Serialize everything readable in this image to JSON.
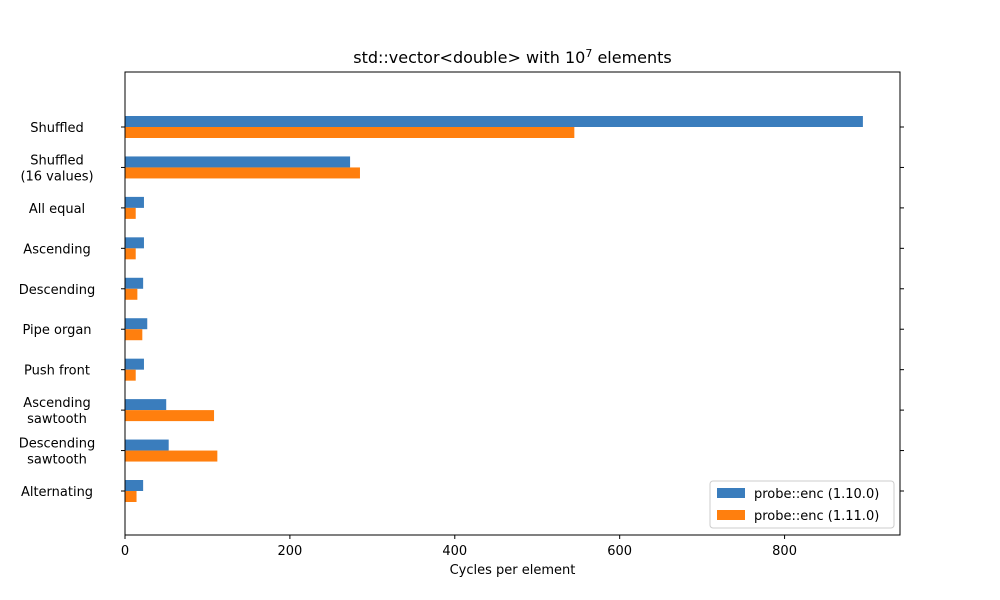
{
  "chart_data": {
    "type": "bar",
    "orientation": "horizontal",
    "title": "std::vector<double> with 10",
    "title_superscript": "7",
    "title_suffix": " elements",
    "xlabel": "Cycles per element",
    "ylabel": "",
    "xlim": [
      0,
      940
    ],
    "xticks": [
      0,
      200,
      400,
      600,
      800
    ],
    "grid": false,
    "legend_position": "lower-right",
    "categories": [
      [
        "Shuffled"
      ],
      [
        "Shuffled",
        "(16 values)"
      ],
      [
        "All equal"
      ],
      [
        "Ascending"
      ],
      [
        "Descending"
      ],
      [
        "Pipe organ"
      ],
      [
        "Push front"
      ],
      [
        "Ascending",
        "sawtooth"
      ],
      [
        "Descending",
        "sawtooth"
      ],
      [
        "Alternating"
      ]
    ],
    "series": [
      {
        "name": "probe::enc (1.10.0)",
        "color": "#3a7dbd",
        "values": [
          895,
          273,
          23,
          23,
          22,
          27,
          23,
          50,
          53,
          22
        ]
      },
      {
        "name": "probe::enc (1.11.0)",
        "color": "#ff7f0e",
        "values": [
          545,
          285,
          13,
          13,
          15,
          21,
          13,
          108,
          112,
          14
        ]
      }
    ]
  }
}
